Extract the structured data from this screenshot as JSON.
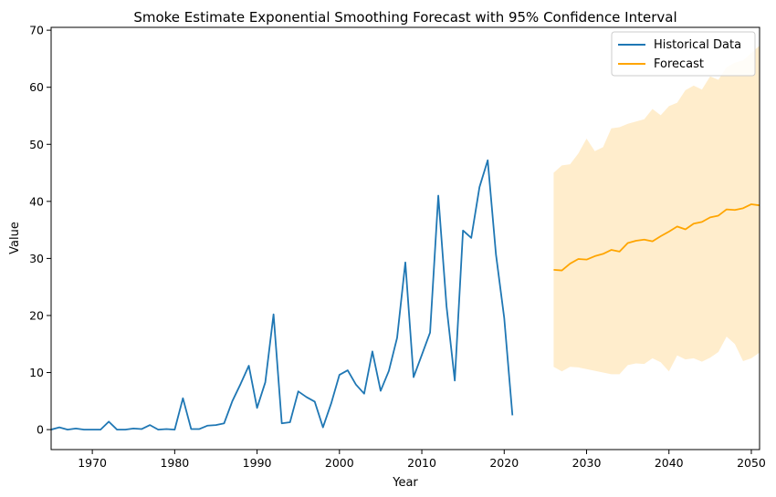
{
  "chart_data": {
    "type": "line",
    "title": "Smoke Estimate Exponential Smoothing Forecast with 95% Confidence Interval",
    "xlabel": "Year",
    "ylabel": "Value",
    "xlim": [
      1965,
      2051
    ],
    "ylim": [
      -3.5,
      70.5
    ],
    "x_ticks": [
      1970,
      1980,
      1990,
      2000,
      2010,
      2020,
      2030,
      2040,
      2050
    ],
    "y_ticks": [
      0,
      10,
      20,
      30,
      40,
      50,
      60,
      70
    ],
    "grid": false,
    "legend_position": "top-right",
    "colors": {
      "historical": "#1f77b4",
      "forecast": "#ffa500",
      "ci_band": "#ffa500"
    },
    "series": [
      {
        "name": "Historical Data",
        "x": [
          1965,
          1966,
          1967,
          1968,
          1969,
          1970,
          1971,
          1972,
          1973,
          1974,
          1975,
          1976,
          1977,
          1978,
          1979,
          1980,
          1981,
          1982,
          1983,
          1984,
          1985,
          1986,
          1987,
          1988,
          1989,
          1990,
          1991,
          1992,
          1993,
          1994,
          1995,
          1996,
          1997,
          1998,
          1999,
          2000,
          2001,
          2002,
          2003,
          2004,
          2005,
          2006,
          2007,
          2008,
          2009,
          2010,
          2011,
          2012,
          2013,
          2014,
          2015,
          2016,
          2017,
          2018,
          2019,
          2020,
          2021
        ],
        "y": [
          0.0,
          0.4,
          0.0,
          0.2,
          0.0,
          0.0,
          0.0,
          1.4,
          0.0,
          0.0,
          0.2,
          0.1,
          0.8,
          0.0,
          0.1,
          0.0,
          5.5,
          0.1,
          0.1,
          0.7,
          0.8,
          1.1,
          5.0,
          8.0,
          11.2,
          3.8,
          8.3,
          20.2,
          1.1,
          1.3,
          6.7,
          5.7,
          4.9,
          0.4,
          4.6,
          9.6,
          10.4,
          7.9,
          6.3,
          13.7,
          6.8,
          10.3,
          16.1,
          29.3,
          9.2,
          13.1,
          17.0,
          41.0,
          21.6,
          8.6,
          34.9,
          33.6,
          42.5,
          47.2,
          30.7,
          19.6,
          2.5
        ]
      },
      {
        "name": "Forecast",
        "x": [
          2026,
          2027,
          2028,
          2029,
          2030,
          2031,
          2032,
          2033,
          2034,
          2035,
          2036,
          2037,
          2038,
          2039,
          2040,
          2041,
          2042,
          2043,
          2044,
          2045,
          2046,
          2047,
          2048,
          2049,
          2050,
          2051
        ],
        "y": [
          28.0,
          27.9,
          29.1,
          29.9,
          29.8,
          30.4,
          30.8,
          31.5,
          31.2,
          32.7,
          33.1,
          33.3,
          33.0,
          33.9,
          34.7,
          35.6,
          35.1,
          36.1,
          36.4,
          37.2,
          37.5,
          38.6,
          38.5,
          38.8,
          39.5,
          39.3
        ],
        "lower": [
          11.0,
          10.2,
          11.0,
          10.9,
          10.6,
          10.3,
          10.0,
          9.7,
          9.7,
          11.3,
          11.6,
          11.5,
          12.5,
          11.8,
          10.2,
          13.0,
          12.3,
          12.5,
          11.9,
          12.6,
          13.6,
          16.3,
          15.0,
          12.0,
          12.5,
          13.5
        ],
        "upper": [
          45.0,
          46.3,
          46.5,
          48.4,
          51.0,
          48.8,
          49.5,
          52.8,
          53.0,
          53.6,
          54.0,
          54.4,
          56.2,
          55.1,
          56.7,
          57.3,
          59.5,
          60.3,
          59.6,
          61.9,
          61.3,
          63.5,
          64.3,
          64.7,
          66.0,
          67.3
        ]
      }
    ]
  }
}
